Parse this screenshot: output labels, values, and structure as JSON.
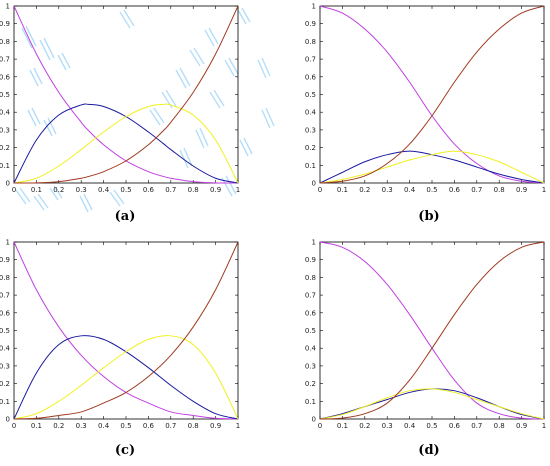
{
  "captions": {
    "a": "(a)",
    "b": "(b)",
    "c": "(c)",
    "d": "(d)"
  },
  "colors": {
    "magenta": "#c040e0",
    "blue": "#1a1aa0",
    "yellow": "#f0f020",
    "red": "#a03a20",
    "axis": "#000000",
    "watermark": "#a8d8f8"
  },
  "chart_data": [
    {
      "type": "line",
      "panel": "a",
      "xlim": [
        0,
        1
      ],
      "ylim": [
        0,
        1
      ],
      "xticks": [
        "0",
        "0.1",
        "0.2",
        "0.3",
        "0.4",
        "0.5",
        "0.6",
        "0.7",
        "0.8",
        "0.9",
        "1"
      ],
      "yticks": [
        "0",
        "0.1",
        "0.2",
        "0.3",
        "0.4",
        "0.5",
        "0.6",
        "0.7",
        "0.8",
        "0.9",
        "1"
      ],
      "x": [
        0,
        0.1,
        0.2,
        0.3,
        0.333,
        0.4,
        0.5,
        0.6,
        0.667,
        0.7,
        0.8,
        0.9,
        1
      ],
      "series": [
        {
          "color": "magenta",
          "values": [
            1,
            0.729,
            0.512,
            0.343,
            0.296,
            0.216,
            0.125,
            0.064,
            0.037,
            0.027,
            0.008,
            0.001,
            0
          ]
        },
        {
          "color": "blue",
          "values": [
            0,
            0.243,
            0.384,
            0.441,
            0.444,
            0.432,
            0.375,
            0.288,
            0.222,
            0.189,
            0.096,
            0.027,
            0
          ]
        },
        {
          "color": "yellow",
          "values": [
            0,
            0.027,
            0.096,
            0.189,
            0.222,
            0.288,
            0.375,
            0.432,
            0.444,
            0.441,
            0.384,
            0.243,
            0
          ]
        },
        {
          "color": "red",
          "values": [
            0,
            0.001,
            0.008,
            0.027,
            0.037,
            0.064,
            0.125,
            0.216,
            0.296,
            0.343,
            0.512,
            0.729,
            1
          ]
        }
      ]
    },
    {
      "type": "line",
      "panel": "b",
      "xlim": [
        0,
        1
      ],
      "ylim": [
        0,
        1
      ],
      "xticks": [
        "0",
        "0.1",
        "0.2",
        "0.3",
        "0.4",
        "0.5",
        "0.6",
        "0.7",
        "0.8",
        "0.9",
        "1"
      ],
      "yticks": [
        "0",
        "0.1",
        "0.2",
        "0.3",
        "0.4",
        "0.5",
        "0.6",
        "0.7",
        "0.8",
        "0.9",
        "1"
      ],
      "x": [
        0,
        0.1,
        0.2,
        0.3,
        0.4,
        0.5,
        0.6,
        0.7,
        0.8,
        0.9,
        1
      ],
      "series": [
        {
          "color": "magenta",
          "values": [
            1,
            0.96,
            0.87,
            0.74,
            0.57,
            0.38,
            0.22,
            0.11,
            0.04,
            0.01,
            0
          ]
        },
        {
          "color": "blue",
          "values": [
            0,
            0.06,
            0.12,
            0.16,
            0.18,
            0.16,
            0.13,
            0.09,
            0.05,
            0.02,
            0
          ]
        },
        {
          "color": "yellow",
          "values": [
            0,
            0.02,
            0.05,
            0.09,
            0.13,
            0.16,
            0.18,
            0.16,
            0.12,
            0.06,
            0
          ]
        },
        {
          "color": "red",
          "values": [
            0,
            0.01,
            0.04,
            0.11,
            0.22,
            0.38,
            0.57,
            0.74,
            0.87,
            0.96,
            1
          ]
        }
      ]
    },
    {
      "type": "line",
      "panel": "c",
      "xlim": [
        0,
        1
      ],
      "ylim": [
        0,
        1
      ],
      "xticks": [
        "0",
        "0.1",
        "0.2",
        "0.3",
        "0.4",
        "0.5",
        "0.6",
        "0.7",
        "0.8",
        "0.9",
        "1"
      ],
      "yticks": [
        "0",
        "0.1",
        "0.2",
        "0.3",
        "0.4",
        "0.5",
        "0.6",
        "0.7",
        "0.8",
        "0.9",
        "1"
      ],
      "x": [
        0,
        0.1,
        0.2,
        0.3,
        0.4,
        0.5,
        0.6,
        0.7,
        0.8,
        0.9,
        1
      ],
      "series": [
        {
          "color": "magenta",
          "values": [
            1,
            0.73,
            0.52,
            0.36,
            0.24,
            0.15,
            0.09,
            0.04,
            0.02,
            0.004,
            0
          ]
        },
        {
          "color": "blue",
          "values": [
            0,
            0.26,
            0.42,
            0.47,
            0.45,
            0.38,
            0.29,
            0.19,
            0.1,
            0.03,
            0
          ]
        },
        {
          "color": "yellow",
          "values": [
            0,
            0.03,
            0.1,
            0.19,
            0.29,
            0.38,
            0.45,
            0.47,
            0.42,
            0.26,
            0
          ]
        },
        {
          "color": "red",
          "values": [
            0,
            0.004,
            0.02,
            0.04,
            0.09,
            0.15,
            0.24,
            0.36,
            0.52,
            0.73,
            1
          ]
        }
      ]
    },
    {
      "type": "line",
      "panel": "d",
      "xlim": [
        0,
        1
      ],
      "ylim": [
        0,
        1
      ],
      "xticks": [
        "0",
        "0.1",
        "0.2",
        "0.3",
        "0.4",
        "0.5",
        "0.6",
        "0.7",
        "0.8",
        "0.9",
        "1"
      ],
      "yticks": [
        "0",
        "0.1",
        "0.2",
        "0.3",
        "0.4",
        "0.5",
        "0.6",
        "0.7",
        "0.8",
        "0.9",
        "1"
      ],
      "x": [
        0,
        0.1,
        0.2,
        0.3,
        0.4,
        0.5,
        0.6,
        0.7,
        0.8,
        0.9,
        1
      ],
      "series": [
        {
          "color": "magenta",
          "values": [
            1,
            0.97,
            0.89,
            0.76,
            0.59,
            0.4,
            0.22,
            0.09,
            0.03,
            0.005,
            0
          ]
        },
        {
          "color": "blue",
          "values": [
            0,
            0.03,
            0.07,
            0.11,
            0.15,
            0.17,
            0.16,
            0.12,
            0.07,
            0.025,
            0
          ]
        },
        {
          "color": "yellow",
          "values": [
            0,
            0.025,
            0.07,
            0.12,
            0.16,
            0.17,
            0.15,
            0.11,
            0.07,
            0.03,
            0
          ]
        },
        {
          "color": "red",
          "values": [
            0,
            0.005,
            0.03,
            0.09,
            0.22,
            0.4,
            0.59,
            0.76,
            0.89,
            0.97,
            1
          ]
        }
      ]
    }
  ]
}
